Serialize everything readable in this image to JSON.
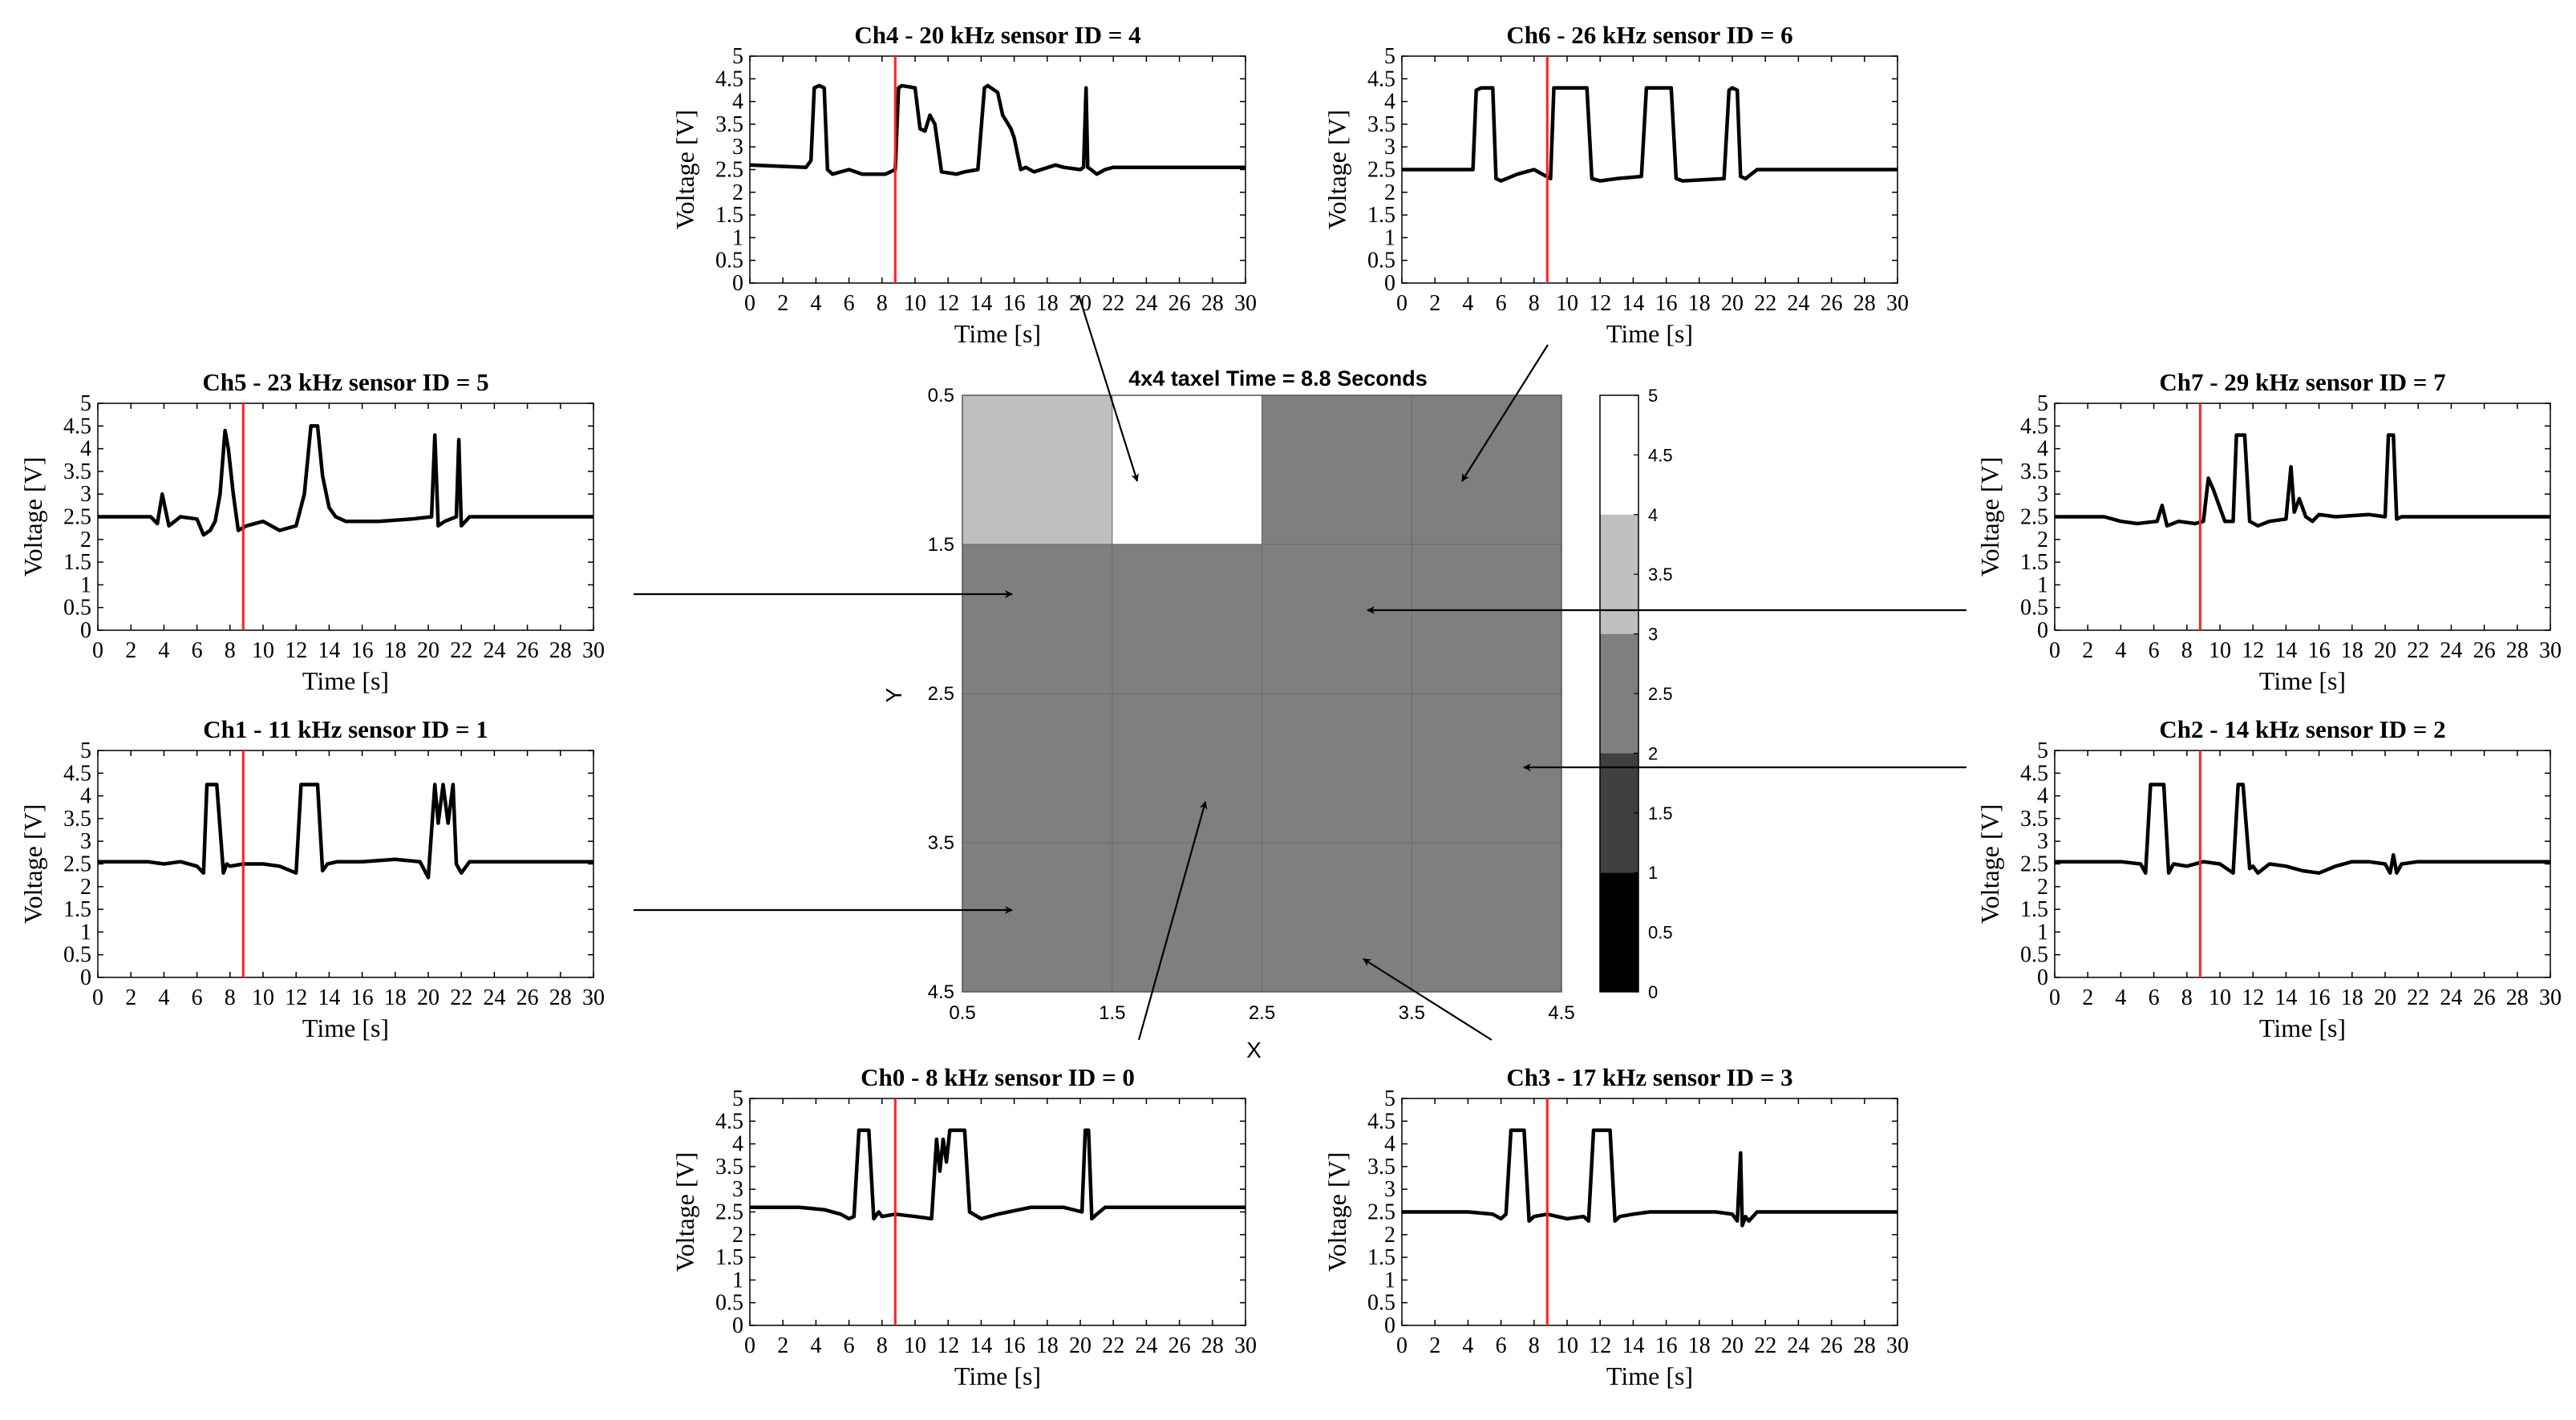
{
  "figure": {
    "background": "#ffffff",
    "marker_time_s": 8.8
  },
  "chart_data": [
    {
      "type": "line",
      "id": "ch4",
      "title": "Ch4 - 20 kHz sensor ID = 4",
      "xlabel": "Time [s]",
      "ylabel": "Voltage [V]",
      "xlim": [
        0,
        30
      ],
      "ylim": [
        0,
        5
      ],
      "xticks": [
        "0",
        "2",
        "4",
        "6",
        "8",
        "10",
        "12",
        "14",
        "16",
        "18",
        "20",
        "22",
        "24",
        "26",
        "28",
        "30"
      ],
      "yticks": [
        "0",
        "0.5",
        "1",
        "1.5",
        "2",
        "2.5",
        "3",
        "3.5",
        "4",
        "4.5",
        "5"
      ],
      "marker_x": 8.8,
      "marker_color": "#ff2020",
      "line_color": "#000000",
      "baseline": 2.55,
      "series": [
        {
          "name": "voltage",
          "x": [
            0,
            3.4,
            3.7,
            3.9,
            4.2,
            4.5,
            4.7,
            5.0,
            6.0,
            6.8,
            8.2,
            8.8,
            9.0,
            9.2,
            10.0,
            10.3,
            10.6,
            10.9,
            11.2,
            11.6,
            12.5,
            13.0,
            13.8,
            14.2,
            14.4,
            15.0,
            15.3,
            15.8,
            16.0,
            16.4,
            16.7,
            17.2,
            18.5,
            19.0,
            20.0,
            20.2,
            20.35,
            20.45,
            20.65,
            21.0,
            21.5,
            22.0,
            30
          ],
          "y": [
            2.6,
            2.55,
            2.7,
            4.3,
            4.35,
            4.3,
            2.5,
            2.4,
            2.5,
            2.4,
            2.4,
            2.5,
            4.3,
            4.35,
            4.3,
            3.4,
            3.35,
            3.7,
            3.5,
            2.45,
            2.4,
            2.45,
            2.5,
            4.3,
            4.35,
            4.2,
            3.7,
            3.4,
            3.2,
            2.5,
            2.55,
            2.45,
            2.6,
            2.55,
            2.5,
            2.55,
            4.3,
            2.55,
            2.5,
            2.4,
            2.5,
            2.55,
            2.55
          ]
        }
      ]
    },
    {
      "type": "line",
      "id": "ch6",
      "title": "Ch6 - 26 kHz sensor ID = 6",
      "xlabel": "Time [s]",
      "ylabel": "Voltage [V]",
      "xlim": [
        0,
        30
      ],
      "ylim": [
        0,
        5
      ],
      "xticks": [
        "0",
        "2",
        "4",
        "6",
        "8",
        "10",
        "12",
        "14",
        "16",
        "18",
        "20",
        "22",
        "24",
        "26",
        "28",
        "30"
      ],
      "yticks": [
        "0",
        "0.5",
        "1",
        "1.5",
        "2",
        "2.5",
        "3",
        "3.5",
        "4",
        "4.5",
        "5"
      ],
      "marker_x": 8.8,
      "marker_color": "#ff2020",
      "line_color": "#000000",
      "baseline": 2.5,
      "series": [
        {
          "name": "voltage",
          "x": [
            0,
            4.3,
            4.5,
            4.8,
            5.5,
            5.7,
            6.0,
            7.0,
            8.0,
            9.0,
            9.2,
            9.5,
            11.2,
            11.5,
            12.0,
            13.0,
            14.5,
            14.8,
            15.0,
            16.3,
            16.6,
            17.0,
            19.5,
            19.8,
            20.0,
            20.3,
            20.5,
            20.8,
            21.5,
            30
          ],
          "y": [
            2.5,
            2.5,
            4.25,
            4.3,
            4.3,
            2.3,
            2.25,
            2.4,
            2.5,
            2.3,
            4.3,
            4.3,
            4.3,
            2.3,
            2.25,
            2.3,
            2.35,
            4.3,
            4.3,
            4.3,
            2.3,
            2.25,
            2.3,
            4.25,
            4.3,
            4.25,
            2.35,
            2.3,
            2.5,
            2.5
          ]
        }
      ]
    },
    {
      "type": "line",
      "id": "ch5",
      "title": "Ch5 - 23 kHz sensor ID = 5",
      "xlabel": "Time [s]",
      "ylabel": "Voltage [V]",
      "xlim": [
        0,
        30
      ],
      "ylim": [
        0,
        5
      ],
      "xticks": [
        "0",
        "2",
        "4",
        "6",
        "8",
        "10",
        "12",
        "14",
        "16",
        "18",
        "20",
        "22",
        "24",
        "26",
        "28",
        "30"
      ],
      "yticks": [
        "0",
        "0.5",
        "1",
        "1.5",
        "2",
        "2.5",
        "3",
        "3.5",
        "4",
        "4.5",
        "5"
      ],
      "marker_x": 8.8,
      "marker_color": "#ff2020",
      "line_color": "#000000",
      "baseline": 2.5,
      "series": [
        {
          "name": "voltage",
          "x": [
            0,
            3.2,
            3.6,
            3.9,
            4.3,
            5.0,
            6.0,
            6.4,
            6.8,
            7.1,
            7.4,
            7.7,
            7.9,
            8.2,
            8.5,
            9.0,
            10.0,
            11.0,
            12.0,
            12.5,
            12.9,
            13.3,
            13.6,
            14.0,
            14.4,
            15.0,
            17.0,
            19.0,
            20.2,
            20.4,
            20.6,
            21.0,
            21.7,
            21.85,
            22.0,
            22.5,
            30
          ],
          "y": [
            2.5,
            2.5,
            2.35,
            3.0,
            2.3,
            2.5,
            2.45,
            2.1,
            2.2,
            2.4,
            3.0,
            4.4,
            4.0,
            3.0,
            2.2,
            2.3,
            2.4,
            2.2,
            2.3,
            3.0,
            4.5,
            4.5,
            3.4,
            2.7,
            2.5,
            2.4,
            2.4,
            2.45,
            2.5,
            4.3,
            2.3,
            2.4,
            2.5,
            4.2,
            2.3,
            2.5,
            2.5
          ]
        }
      ]
    },
    {
      "type": "line",
      "id": "ch7",
      "title": "Ch7 - 29 kHz sensor ID = 7",
      "xlabel": "Time [s]",
      "ylabel": "Voltage [V]",
      "xlim": [
        0,
        30
      ],
      "ylim": [
        0,
        5
      ],
      "xticks": [
        "0",
        "2",
        "4",
        "6",
        "8",
        "10",
        "12",
        "14",
        "16",
        "18",
        "20",
        "22",
        "24",
        "26",
        "28",
        "30"
      ],
      "yticks": [
        "0",
        "0.5",
        "1",
        "1.5",
        "2",
        "2.5",
        "3",
        "3.5",
        "4",
        "4.5",
        "5"
      ],
      "marker_x": 8.8,
      "marker_color": "#ff2020",
      "line_color": "#000000",
      "baseline": 2.5,
      "series": [
        {
          "name": "voltage",
          "x": [
            0,
            3.0,
            4.0,
            5.0,
            6.2,
            6.5,
            6.8,
            7.5,
            8.5,
            9.0,
            9.3,
            9.6,
            9.9,
            10.3,
            10.8,
            11.0,
            11.5,
            11.8,
            12.3,
            13.0,
            14.0,
            14.3,
            14.5,
            14.8,
            15.2,
            15.6,
            16.0,
            17.0,
            19.0,
            20.0,
            20.2,
            20.5,
            20.7,
            21.0,
            22.0,
            30
          ],
          "y": [
            2.5,
            2.5,
            2.4,
            2.35,
            2.4,
            2.75,
            2.3,
            2.4,
            2.35,
            2.4,
            3.35,
            3.1,
            2.8,
            2.4,
            2.4,
            4.3,
            4.3,
            2.4,
            2.3,
            2.4,
            2.45,
            3.6,
            2.6,
            2.9,
            2.5,
            2.4,
            2.55,
            2.5,
            2.55,
            2.5,
            4.3,
            4.3,
            2.45,
            2.5,
            2.5,
            2.5
          ]
        }
      ]
    },
    {
      "type": "line",
      "id": "ch1",
      "title": "Ch1 - 11 kHz sensor ID = 1",
      "xlabel": "Time [s]",
      "ylabel": "Voltage [V]",
      "xlim": [
        0,
        30
      ],
      "ylim": [
        0,
        5
      ],
      "xticks": [
        "0",
        "2",
        "4",
        "6",
        "8",
        "10",
        "12",
        "14",
        "16",
        "18",
        "20",
        "22",
        "24",
        "26",
        "28",
        "30"
      ],
      "yticks": [
        "0",
        "0.5",
        "1",
        "1.5",
        "2",
        "2.5",
        "3",
        "3.5",
        "4",
        "4.5",
        "5"
      ],
      "marker_x": 8.8,
      "marker_color": "#ff2020",
      "line_color": "#000000",
      "baseline": 2.55,
      "series": [
        {
          "name": "voltage",
          "x": [
            0,
            3.0,
            4.0,
            5.0,
            6.0,
            6.4,
            6.6,
            7.2,
            7.6,
            7.8,
            8.0,
            8.8,
            10.0,
            11.0,
            12.0,
            12.3,
            12.6,
            13.3,
            13.6,
            13.9,
            14.5,
            16.0,
            18.0,
            19.5,
            20.0,
            20.4,
            20.6,
            20.9,
            21.2,
            21.5,
            21.7,
            22.0,
            22.5,
            30
          ],
          "y": [
            2.55,
            2.55,
            2.5,
            2.55,
            2.45,
            2.3,
            4.25,
            4.25,
            2.3,
            2.5,
            2.45,
            2.5,
            2.5,
            2.45,
            2.3,
            4.25,
            4.25,
            4.25,
            2.35,
            2.5,
            2.55,
            2.55,
            2.6,
            2.55,
            2.2,
            4.25,
            3.4,
            4.25,
            3.4,
            4.25,
            2.5,
            2.3,
            2.55,
            2.55
          ]
        }
      ]
    },
    {
      "type": "line",
      "id": "ch2",
      "title": "Ch2 - 14 kHz sensor ID = 2",
      "xlabel": "Time [s]",
      "ylabel": "Voltage [V]",
      "xlim": [
        0,
        30
      ],
      "ylim": [
        0,
        5
      ],
      "xticks": [
        "0",
        "2",
        "4",
        "6",
        "8",
        "10",
        "12",
        "14",
        "16",
        "18",
        "20",
        "22",
        "24",
        "26",
        "28",
        "30"
      ],
      "yticks": [
        "0",
        "0.5",
        "1",
        "1.5",
        "2",
        "2.5",
        "3",
        "3.5",
        "4",
        "4.5",
        "5"
      ],
      "marker_x": 8.8,
      "marker_color": "#ff2020",
      "line_color": "#000000",
      "baseline": 2.55,
      "series": [
        {
          "name": "voltage",
          "x": [
            0,
            4.0,
            5.2,
            5.5,
            5.8,
            6.6,
            6.9,
            7.2,
            8.0,
            9.0,
            10.0,
            10.8,
            11.1,
            11.4,
            11.8,
            12.0,
            12.3,
            13.0,
            14.0,
            15.0,
            16.0,
            17.0,
            18.0,
            19.0,
            20.0,
            20.3,
            20.5,
            20.7,
            21.0,
            22.0,
            30
          ],
          "y": [
            2.55,
            2.55,
            2.5,
            2.3,
            4.25,
            4.25,
            2.3,
            2.5,
            2.45,
            2.55,
            2.5,
            2.3,
            4.25,
            4.25,
            2.4,
            2.45,
            2.3,
            2.5,
            2.45,
            2.35,
            2.3,
            2.45,
            2.55,
            2.55,
            2.5,
            2.3,
            2.7,
            2.3,
            2.5,
            2.55,
            2.55
          ]
        }
      ]
    },
    {
      "type": "line",
      "id": "ch0",
      "title": "Ch0 - 8 kHz sensor ID = 0",
      "xlabel": "Time [s]",
      "ylabel": "Voltage [V]",
      "xlim": [
        0,
        30
      ],
      "ylim": [
        0,
        5
      ],
      "xticks": [
        "0",
        "2",
        "4",
        "6",
        "8",
        "10",
        "12",
        "14",
        "16",
        "18",
        "20",
        "22",
        "24",
        "26",
        "28",
        "30"
      ],
      "yticks": [
        "0",
        "0.5",
        "1",
        "1.5",
        "2",
        "2.5",
        "3",
        "3.5",
        "4",
        "4.5",
        "5"
      ],
      "marker_x": 8.8,
      "marker_color": "#ff2020",
      "line_color": "#000000",
      "baseline": 2.6,
      "series": [
        {
          "name": "voltage",
          "x": [
            0,
            3.0,
            4.5,
            5.5,
            6.0,
            6.3,
            6.6,
            7.2,
            7.5,
            7.8,
            8.0,
            8.8,
            10.0,
            11.0,
            11.3,
            11.5,
            11.7,
            11.9,
            12.1,
            12.3,
            12.8,
            13.0,
            13.3,
            14.0,
            15.0,
            17.0,
            19.0,
            20.1,
            20.3,
            20.5,
            20.7,
            21.0,
            21.5,
            22.0,
            30
          ],
          "y": [
            2.6,
            2.6,
            2.55,
            2.45,
            2.35,
            2.4,
            4.3,
            4.3,
            2.35,
            2.5,
            2.4,
            2.45,
            2.4,
            2.35,
            4.1,
            3.4,
            4.1,
            3.6,
            4.3,
            4.3,
            4.3,
            4.3,
            2.5,
            2.35,
            2.45,
            2.6,
            2.6,
            2.5,
            4.3,
            4.3,
            2.35,
            2.45,
            2.6,
            2.6,
            2.6
          ]
        }
      ]
    },
    {
      "type": "line",
      "id": "ch3",
      "title": "Ch3 - 17 kHz sensor ID = 3",
      "xlabel": "Time [s]",
      "ylabel": "Voltage [V]",
      "xlim": [
        0,
        30
      ],
      "ylim": [
        0,
        5
      ],
      "xticks": [
        "0",
        "2",
        "4",
        "6",
        "8",
        "10",
        "12",
        "14",
        "16",
        "18",
        "20",
        "22",
        "24",
        "26",
        "28",
        "30"
      ],
      "yticks": [
        "0",
        "0.5",
        "1",
        "1.5",
        "2",
        "2.5",
        "3",
        "3.5",
        "4",
        "4.5",
        "5"
      ],
      "marker_x": 8.8,
      "marker_color": "#ff2020",
      "line_color": "#000000",
      "baseline": 2.5,
      "series": [
        {
          "name": "voltage",
          "x": [
            0,
            4.0,
            5.5,
            6.0,
            6.3,
            6.6,
            7.4,
            7.7,
            8.0,
            8.8,
            10.0,
            11.0,
            11.3,
            11.6,
            12.6,
            12.9,
            13.2,
            14.0,
            15.0,
            17.0,
            19.0,
            20.0,
            20.3,
            20.5,
            20.6,
            20.8,
            21.0,
            21.5,
            30
          ],
          "y": [
            2.5,
            2.5,
            2.45,
            2.35,
            2.45,
            4.3,
            4.3,
            2.3,
            2.4,
            2.45,
            2.35,
            2.4,
            2.3,
            4.3,
            4.3,
            2.3,
            2.4,
            2.45,
            2.5,
            2.5,
            2.5,
            2.45,
            2.3,
            3.8,
            2.2,
            2.4,
            2.3,
            2.5,
            2.5
          ]
        }
      ]
    },
    {
      "type": "heatmap",
      "id": "taxel",
      "title": "4x4 taxel Time = 8.8 Seconds",
      "xlabel": "X",
      "ylabel": "Y",
      "xticks": [
        "0.5",
        "1.5",
        "2.5",
        "3.5",
        "4.5"
      ],
      "yticks": [
        "0.5",
        "1.5",
        "2.5",
        "3.5",
        "4.5"
      ],
      "xlim": [
        0.5,
        4.5
      ],
      "ylim": [
        0.5,
        4.5
      ],
      "grid": [
        [
          3.6,
          4.6,
          2.5,
          2.5
        ],
        [
          2.5,
          2.5,
          2.5,
          2.5
        ],
        [
          2.5,
          2.5,
          2.5,
          2.5
        ],
        [
          2.5,
          2.5,
          2.5,
          2.5
        ]
      ],
      "colorbar": {
        "ticks": [
          "0",
          "0.5",
          "1",
          "1.5",
          "2",
          "2.5",
          "3",
          "3.5",
          "4",
          "4.5",
          "5"
        ],
        "range": [
          0,
          5
        ],
        "bands": [
          {
            "from": 0,
            "to": 1,
            "color": "#000000"
          },
          {
            "from": 1,
            "to": 2,
            "color": "#404040"
          },
          {
            "from": 2,
            "to": 3,
            "color": "#7f7f7f"
          },
          {
            "from": 3,
            "to": 4,
            "color": "#bfbfbf"
          },
          {
            "from": 4,
            "to": 5,
            "color": "#ffffff"
          }
        ]
      }
    }
  ]
}
